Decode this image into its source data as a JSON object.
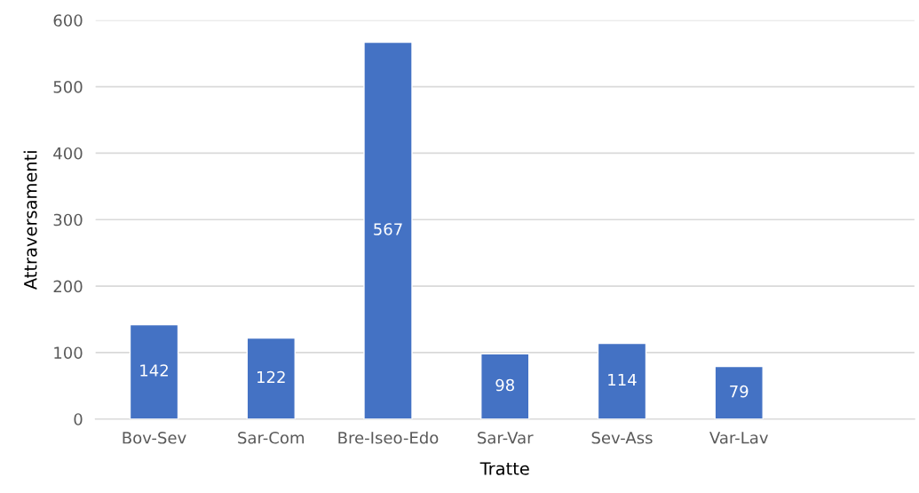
{
  "chart_data": {
    "type": "bar",
    "xlabel": "Tratte",
    "ylabel": "Attraversamenti",
    "categories": [
      "Bov-Sev",
      "Sar-Com",
      "Bre-Iseo-Edo",
      "Sar-Var",
      "Sev-Ass",
      "Var-Lav",
      null
    ],
    "values": [
      142,
      122,
      567,
      98,
      114,
      79,
      null
    ],
    "color": "#4472c4",
    "ylim": [
      0,
      600
    ],
    "yticks": [
      0,
      100,
      200,
      300,
      400,
      500,
      600
    ],
    "grid": "y",
    "data_labels": true
  }
}
